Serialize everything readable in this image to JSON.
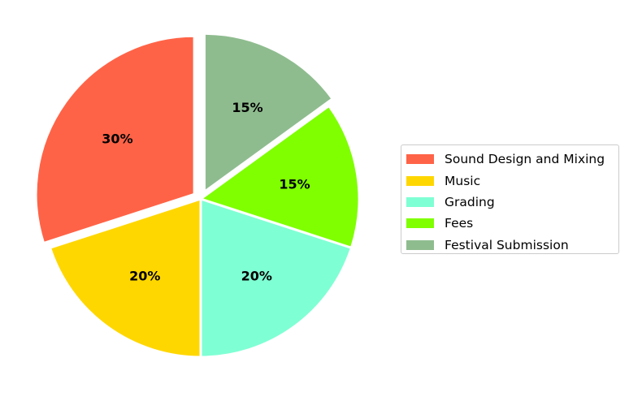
{
  "chart_data": {
    "type": "pie",
    "labels": [
      "Sound Design and Mixing",
      "Music",
      "Grading",
      "Fees",
      "Festival Submission"
    ],
    "values": [
      30,
      20,
      20,
      15,
      15
    ],
    "value_labels": [
      "30%",
      "20%",
      "20%",
      "15%",
      "15%"
    ],
    "colors": [
      "#FF6347",
      "#FFD700",
      "#7FFFD4",
      "#7FFF00",
      "#8FBC8F"
    ],
    "explode": [
      0.05,
      0,
      0,
      0,
      0.05
    ],
    "start_angle": 90,
    "direction": "counterclockwise",
    "legend_position": "right"
  }
}
